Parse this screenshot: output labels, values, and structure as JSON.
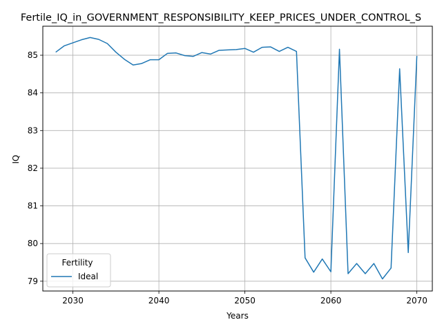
{
  "chart_data": {
    "type": "line",
    "title": "Fertile_IQ_in_GOVERNMENT_RESPONSIBILITY_KEEP_PRICES_UNDER_CONTROL_S",
    "xlabel": "Years",
    "ylabel": "IQ",
    "xlim": [
      2026.5,
      2071.8
    ],
    "ylim": [
      78.74,
      85.77
    ],
    "xticks": [
      2030,
      2040,
      2050,
      2060,
      2070
    ],
    "yticks": [
      79,
      80,
      81,
      82,
      83,
      84,
      85
    ],
    "grid": true,
    "legend": {
      "title": "Fertility",
      "placement": "lower-left"
    },
    "series": [
      {
        "name": "Ideal",
        "color": "#1f77b4",
        "x": [
          2028,
          2029,
          2030,
          2031,
          2032,
          2033,
          2034,
          2035,
          2036,
          2037,
          2038,
          2039,
          2040,
          2041,
          2042,
          2043,
          2044,
          2045,
          2046,
          2047,
          2048,
          2049,
          2050,
          2051,
          2052,
          2053,
          2054,
          2055,
          2056,
          2057,
          2058,
          2059,
          2060,
          2061,
          2062,
          2063,
          2064,
          2065,
          2066,
          2067,
          2068,
          2069,
          2070
        ],
        "values": [
          85.08,
          85.25,
          85.33,
          85.41,
          85.47,
          85.42,
          85.31,
          85.08,
          84.89,
          84.74,
          84.78,
          84.88,
          84.88,
          85.05,
          85.06,
          84.99,
          84.97,
          85.07,
          85.03,
          85.13,
          85.14,
          85.15,
          85.18,
          85.08,
          85.21,
          85.22,
          85.1,
          85.21,
          85.1,
          79.62,
          79.24,
          79.59,
          79.25,
          85.16,
          79.2,
          79.47,
          79.2,
          79.47,
          79.06,
          79.35,
          84.64,
          79.76,
          84.98
        ]
      }
    ]
  }
}
